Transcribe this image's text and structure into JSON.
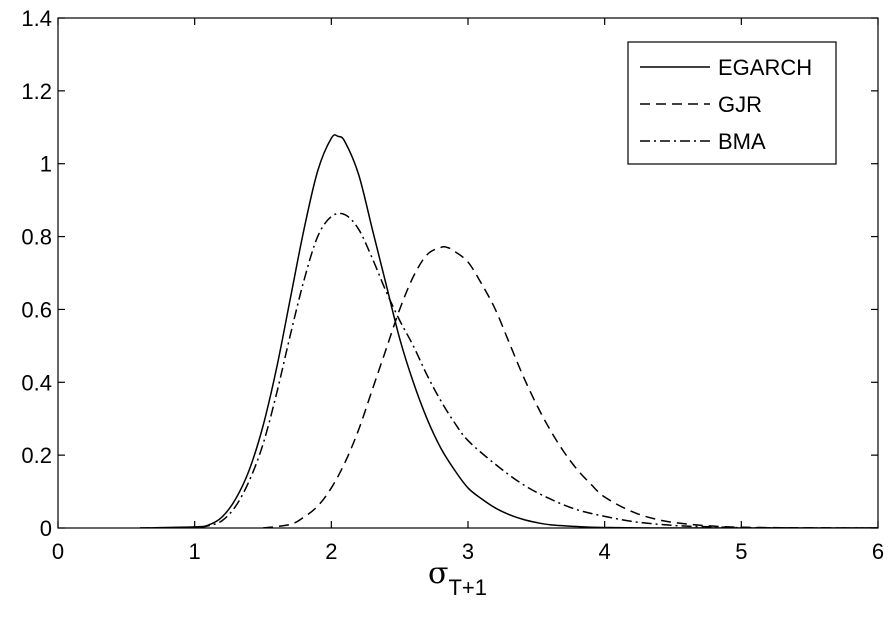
{
  "chart_data": {
    "type": "line",
    "title": "",
    "xlabel_main": "σ",
    "xlabel_sub": "T+1",
    "ylabel": "",
    "xlim": [
      0,
      6
    ],
    "ylim": [
      0,
      1.4
    ],
    "xticks": [
      "0",
      "1",
      "2",
      "3",
      "4",
      "5",
      "6"
    ],
    "yticks": [
      "0",
      "0.2",
      "0.4",
      "0.6",
      "0.8",
      "1",
      "1.2",
      "1.4"
    ],
    "grid": false,
    "legend_position": "top-right",
    "series": [
      {
        "name": "EGARCH",
        "style": "solid",
        "x": [
          0.6,
          1.0,
          1.1,
          1.2,
          1.3,
          1.4,
          1.5,
          1.6,
          1.7,
          1.8,
          1.9,
          2.0,
          2.05,
          2.1,
          2.2,
          2.3,
          2.4,
          2.5,
          2.6,
          2.7,
          2.8,
          2.9,
          3.0,
          3.1,
          3.2,
          3.3,
          3.4,
          3.5,
          3.6,
          3.8,
          4.0,
          4.5,
          6.0
        ],
        "y": [
          0.0,
          0.003,
          0.008,
          0.03,
          0.08,
          0.16,
          0.28,
          0.44,
          0.63,
          0.82,
          0.98,
          1.07,
          1.075,
          1.06,
          0.97,
          0.82,
          0.67,
          0.52,
          0.4,
          0.3,
          0.22,
          0.16,
          0.11,
          0.08,
          0.055,
          0.037,
          0.024,
          0.015,
          0.009,
          0.004,
          0.0015,
          0.0,
          0.0
        ]
      },
      {
        "name": "GJR",
        "style": "dashed",
        "x": [
          1.5,
          1.7,
          1.8,
          1.9,
          2.0,
          2.1,
          2.2,
          2.3,
          2.4,
          2.5,
          2.6,
          2.7,
          2.8,
          2.85,
          2.9,
          3.0,
          3.1,
          3.2,
          3.3,
          3.4,
          3.5,
          3.6,
          3.7,
          3.8,
          3.9,
          4.0,
          4.2,
          4.4,
          4.6,
          4.8,
          5.0,
          5.5,
          6.0
        ],
        "y": [
          0.0,
          0.01,
          0.03,
          0.06,
          0.11,
          0.18,
          0.27,
          0.38,
          0.49,
          0.6,
          0.69,
          0.75,
          0.77,
          0.77,
          0.76,
          0.73,
          0.67,
          0.6,
          0.51,
          0.42,
          0.34,
          0.27,
          0.21,
          0.16,
          0.12,
          0.085,
          0.045,
          0.022,
          0.011,
          0.005,
          0.002,
          0.0003,
          0.0
        ]
      },
      {
        "name": "BMA",
        "style": "dash-dot",
        "x": [
          0.6,
          1.0,
          1.1,
          1.2,
          1.3,
          1.4,
          1.5,
          1.6,
          1.7,
          1.8,
          1.9,
          2.0,
          2.1,
          2.2,
          2.3,
          2.4,
          2.5,
          2.6,
          2.7,
          2.8,
          2.9,
          3.0,
          3.2,
          3.4,
          3.6,
          3.8,
          4.0,
          4.2,
          4.4,
          4.6,
          4.8,
          5.0,
          5.5,
          6.0
        ],
        "y": [
          0.0,
          0.002,
          0.006,
          0.02,
          0.06,
          0.13,
          0.23,
          0.37,
          0.53,
          0.68,
          0.8,
          0.855,
          0.86,
          0.82,
          0.74,
          0.65,
          0.57,
          0.5,
          0.42,
          0.35,
          0.29,
          0.24,
          0.175,
          0.12,
          0.08,
          0.05,
          0.032,
          0.018,
          0.01,
          0.005,
          0.003,
          0.001,
          0.0,
          0.0
        ]
      }
    ]
  }
}
